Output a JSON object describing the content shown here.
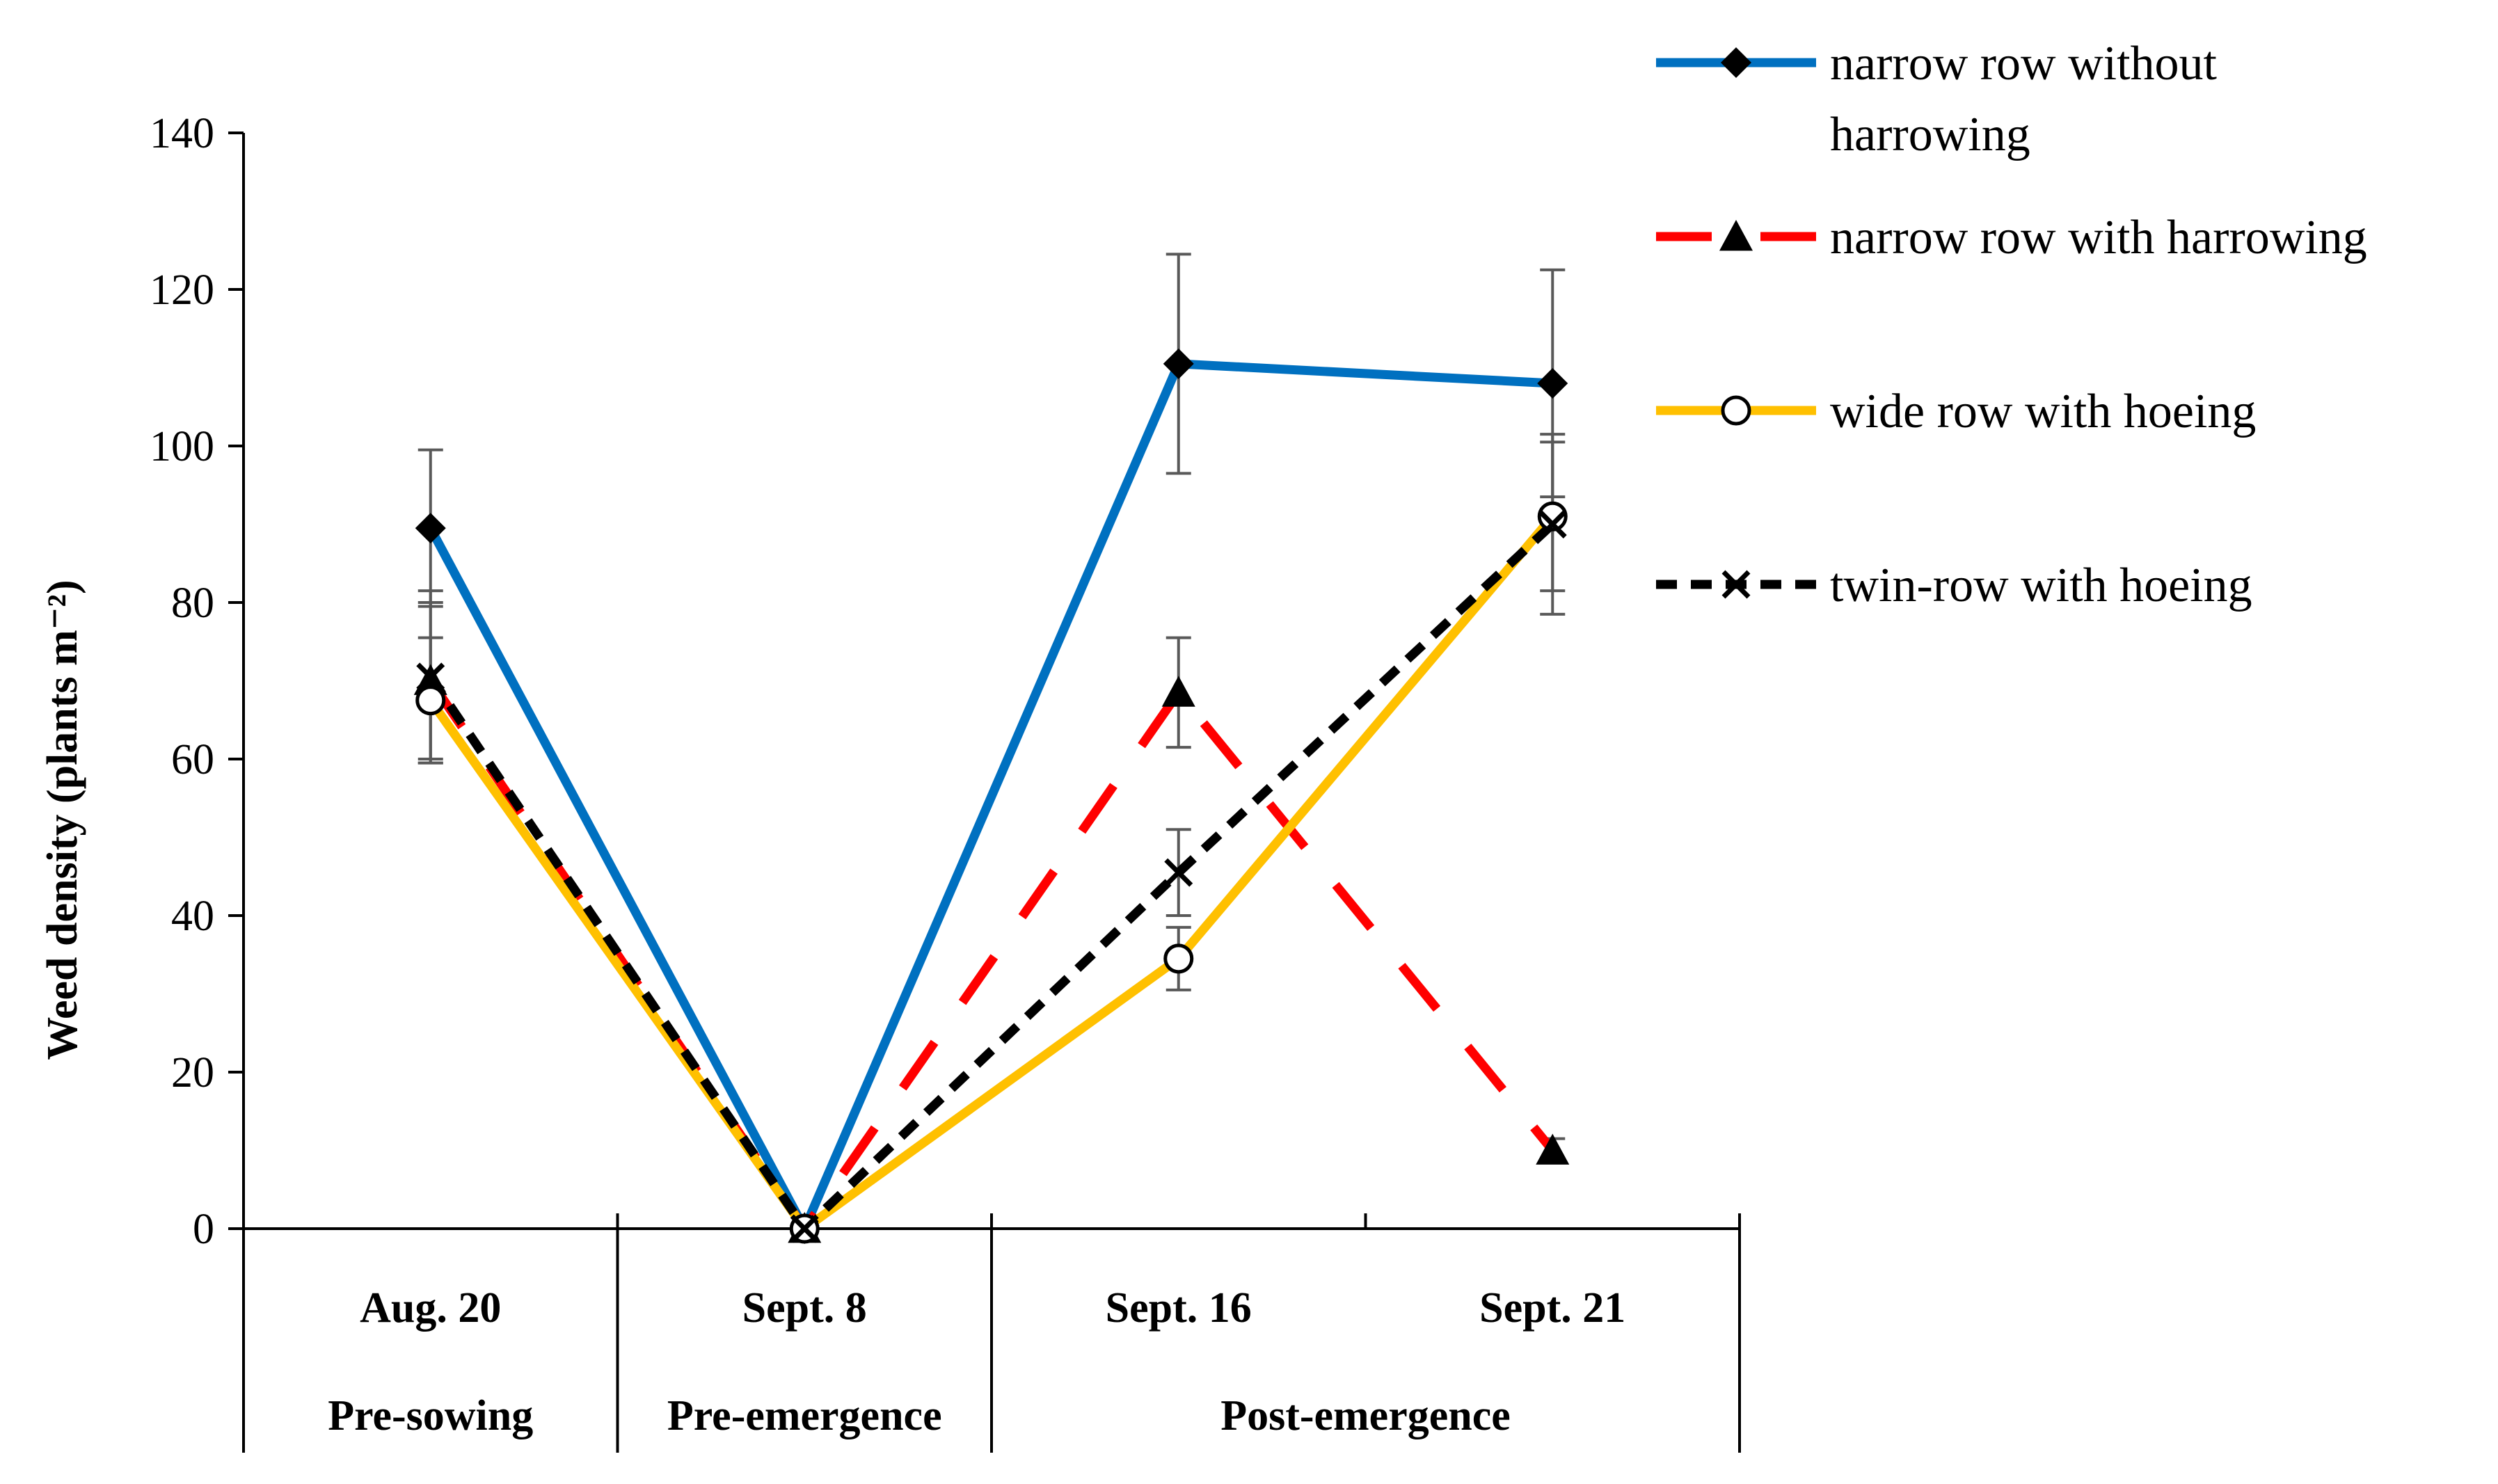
{
  "chart_data": {
    "type": "line",
    "title": "",
    "xlabel": "",
    "ylabel": "Weed density (plants m⁻²)",
    "ylim": [
      0,
      140
    ],
    "yticks": [
      0,
      20,
      40,
      60,
      80,
      100,
      120,
      140
    ],
    "categories": [
      "Aug. 20",
      "Sept. 8",
      "Sept. 16",
      "Sept. 21"
    ],
    "groups": [
      {
        "label": "Pre-sowing",
        "span": [
          0,
          0
        ]
      },
      {
        "label": "Pre-emergence",
        "span": [
          1,
          1
        ]
      },
      {
        "label": "Post-emergence",
        "span": [
          2,
          3
        ]
      }
    ],
    "legend_position": "top-right",
    "series": [
      {
        "name": "narrow row without harrowing",
        "legend_lines": [
          "narrow row without",
          "harrowing"
        ],
        "color": "#0070C0",
        "marker": "diamond",
        "dash": "solid",
        "values": [
          89.5,
          0,
          110.5,
          108
        ],
        "errors": [
          10,
          0,
          14,
          14.5
        ]
      },
      {
        "name": "narrow row with harrowing",
        "legend_lines": [
          "narrow row with harrowing"
        ],
        "color": "#FF0000",
        "marker": "triangle",
        "dash": "longdash",
        "values": [
          70,
          0,
          68.5,
          10
        ],
        "errors": [
          10,
          0,
          7,
          1.5
        ]
      },
      {
        "name": "wide row with hoeing",
        "legend_lines": [
          "wide row with hoeing"
        ],
        "color": "#FFC000",
        "marker": "circle",
        "dash": "solid",
        "values": [
          67.5,
          0,
          34.5,
          91
        ],
        "errors": [
          8,
          0,
          4,
          9.5
        ]
      },
      {
        "name": "twin-row with hoeing",
        "legend_lines": [
          "twin-row with hoeing"
        ],
        "color": "#000000",
        "marker": "x",
        "dash": "dash",
        "values": [
          70.5,
          0,
          45.5,
          90
        ],
        "errors": [
          11,
          0,
          5.5,
          11.5
        ]
      }
    ]
  }
}
